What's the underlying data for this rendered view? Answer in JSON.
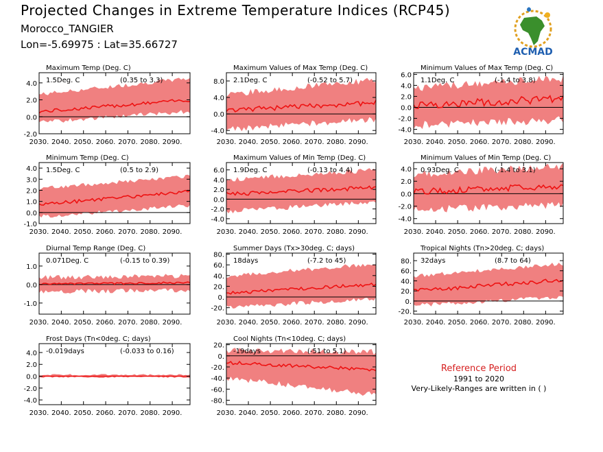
{
  "header": {
    "title": "Projected Changes in Extreme Temperature Indices (RCP45)",
    "location": "Morocco_TANGIER",
    "coords": "Lon=-5.69975 : Lat=35.66727"
  },
  "logo": {
    "text": "ACMAD",
    "icon": "africa-map-logo"
  },
  "reference": {
    "title": "Reference Period",
    "years": "1991 to 2020",
    "note": "Very-Likely-Ranges are written in ( )"
  },
  "colors": {
    "band": "#f08080",
    "line": "#ee1111",
    "zero": "#000000",
    "ref_title": "#d62020"
  },
  "chart_data": [
    {
      "type": "area",
      "title": "Maximum Temp (Deg. C)",
      "median_text": "1.5Deg. C",
      "range_text": "(0.35 to 3.3)",
      "x": [
        2030,
        2098
      ],
      "xticks": [
        "2030.",
        "2040.",
        "2050.",
        "2060.",
        "2070.",
        "2080.",
        "2090."
      ],
      "ylim": [
        -2.0,
        5.2
      ],
      "yticks": [
        -2.0,
        0.0,
        2.0,
        4.0
      ],
      "yticklabels": [
        "-2.0",
        "0.0",
        "2.0",
        "4.0"
      ],
      "median": {
        "start": 0.6,
        "end": 2.0,
        "noise": 0.2
      },
      "band": {
        "low_start": -0.4,
        "low_end": 0.9,
        "high_start": 2.4,
        "high_end": 4.3,
        "noise": 0.5
      }
    },
    {
      "type": "area",
      "title": "Maximum Values of Max Temp (Deg. C)",
      "median_text": "2.1Deg. C",
      "range_text": "(-0.52 to 5.7)",
      "x": [
        2030,
        2098
      ],
      "xticks": [
        "2030.",
        "2040.",
        "2050.",
        "2060.",
        "2070.",
        "2080.",
        "2090."
      ],
      "ylim": [
        -4.8,
        10.0
      ],
      "yticks": [
        -4.0,
        0.0,
        4.0,
        8.0
      ],
      "yticklabels": [
        "-4.0",
        "0.0",
        "4.0",
        "8.0"
      ],
      "median": {
        "start": 0.8,
        "end": 2.8,
        "noise": 0.6
      },
      "band": {
        "low_start": -3.0,
        "low_end": -0.5,
        "high_start": 4.0,
        "high_end": 7.5,
        "noise": 1.5
      }
    },
    {
      "type": "area",
      "title": "Minimum Values of Max Temp (Deg. C)",
      "median_text": "1.1Deg. C",
      "range_text": "(-1.4 to 3.8)",
      "x": [
        2030,
        2098
      ],
      "xticks": [
        "2030.",
        "2040.",
        "2050.",
        "2060.",
        "2070.",
        "2080.",
        "2090."
      ],
      "ylim": [
        -4.8,
        6.3
      ],
      "yticks": [
        -4.0,
        -2.0,
        0.0,
        2.0,
        4.0,
        6.0
      ],
      "yticklabels": [
        "-4.0",
        "-2.0",
        "0.0",
        "2.0",
        "4.0",
        "6.0"
      ],
      "median": {
        "start": 0.4,
        "end": 1.6,
        "noise": 0.7
      },
      "band": {
        "low_start": -2.5,
        "low_end": -1.5,
        "high_start": 2.8,
        "high_end": 4.5,
        "noise": 1.5
      }
    },
    {
      "type": "area",
      "title": "Minimum Temp (Deg. C)",
      "median_text": "1.5Deg. C",
      "range_text": "(0.5 to 2.9)",
      "x": [
        2030,
        2098
      ],
      "xticks": [
        "2030.",
        "2040.",
        "2050.",
        "2060.",
        "2070.",
        "2080.",
        "2090."
      ],
      "ylim": [
        -1.0,
        4.5
      ],
      "yticks": [
        -1.0,
        0.0,
        1.0,
        2.0,
        3.0,
        4.0
      ],
      "yticklabels": [
        "-1.0",
        "0.0",
        "1.0",
        "2.0",
        "3.0",
        "4.0"
      ],
      "median": {
        "start": 0.7,
        "end": 1.9,
        "noise": 0.15
      },
      "band": {
        "low_start": -0.2,
        "low_end": 0.8,
        "high_start": 2.0,
        "high_end": 3.1,
        "noise": 0.35
      }
    },
    {
      "type": "area",
      "title": "Maximum Values of Min Temp (Deg. C)",
      "median_text": "1.9Deg. C",
      "range_text": "(-0.13 to 4.4)",
      "x": [
        2030,
        2098
      ],
      "xticks": [
        "2030.",
        "2040.",
        "2050.",
        "2060.",
        "2070.",
        "2080.",
        "2090."
      ],
      "ylim": [
        -5.0,
        7.5
      ],
      "yticks": [
        -4.0,
        -2.0,
        0.0,
        2.0,
        4.0,
        6.0
      ],
      "yticklabels": [
        "-4.0",
        "-2.0",
        "0.0",
        "2.0",
        "4.0",
        "6.0"
      ],
      "median": {
        "start": 1.0,
        "end": 2.4,
        "noise": 0.4
      },
      "band": {
        "low_start": -2.0,
        "low_end": 0.0,
        "high_start": 3.5,
        "high_end": 5.5,
        "noise": 1.0
      }
    },
    {
      "type": "area",
      "title": "Minimum Values of Min Temp (Deg. C)",
      "median_text": "0.93Deg. C",
      "range_text": "(-1.4 to 3.1)",
      "x": [
        2030,
        2098
      ],
      "xticks": [
        "2030.",
        "2040.",
        "2050.",
        "2060.",
        "2070.",
        "2080.",
        "2090."
      ],
      "ylim": [
        -4.8,
        5.0
      ],
      "yticks": [
        -4.0,
        -2.0,
        0.0,
        2.0,
        4.0
      ],
      "yticklabels": [
        "-4.0",
        "-2.0",
        "0.0",
        "2.0",
        "4.0"
      ],
      "median": {
        "start": 0.3,
        "end": 1.2,
        "noise": 0.5
      },
      "band": {
        "low_start": -2.0,
        "low_end": -1.2,
        "high_start": 2.5,
        "high_end": 3.8,
        "noise": 1.2
      }
    },
    {
      "type": "area",
      "title": "Diurnal Temp Range (Deg. C)",
      "median_text": "0.071Deg. C",
      "range_text": "(-0.15 to 0.39)",
      "x": [
        2030,
        2098
      ],
      "xticks": [
        "2030.",
        "2040.",
        "2050.",
        "2060.",
        "2070.",
        "2080.",
        "2090."
      ],
      "ylim": [
        -1.6,
        1.7
      ],
      "yticks": [
        -1.0,
        0.0,
        1.0
      ],
      "yticklabels": [
        "-1.0",
        "0.0",
        "1.0"
      ],
      "median": {
        "start": 0.02,
        "end": 0.1,
        "noise": 0.05
      },
      "band": {
        "low_start": -0.25,
        "low_end": -0.2,
        "high_start": 0.25,
        "high_end": 0.35,
        "noise": 0.25
      }
    },
    {
      "type": "area",
      "title": "Summer Days (Tx>30deg. C; days)",
      "median_text": "18days",
      "range_text": "(-7.2 to 45)",
      "x": [
        2030,
        2098
      ],
      "xticks": [
        "2030.",
        "2040.",
        "2050.",
        "2060.",
        "2070.",
        "2080.",
        "2090."
      ],
      "ylim": [
        -32,
        82
      ],
      "yticks": [
        -20,
        0,
        20,
        40,
        60,
        80
      ],
      "yticklabels": [
        "-20.",
        "0.",
        "20.",
        "40.",
        "60.",
        "80."
      ],
      "median": {
        "start": 7,
        "end": 24,
        "noise": 3
      },
      "band": {
        "low_start": -15,
        "low_end": 0,
        "high_start": 35,
        "high_end": 58,
        "noise": 8
      }
    },
    {
      "type": "area",
      "title": "Tropical Nights (Tn>20deg. C; days)",
      "median_text": "32days",
      "range_text": "(8.7 to 64)",
      "x": [
        2030,
        2098
      ],
      "xticks": [
        "2030.",
        "2040.",
        "2050.",
        "2060.",
        "2070.",
        "2080.",
        "2090."
      ],
      "ylim": [
        -26,
        95
      ],
      "yticks": [
        -20,
        0,
        20,
        40,
        60,
        80
      ],
      "yticklabels": [
        "-20.",
        "0.",
        "20.",
        "40.",
        "60.",
        "80."
      ],
      "median": {
        "start": 20,
        "end": 42,
        "noise": 4
      },
      "band": {
        "low_start": -5,
        "low_end": 12,
        "high_start": 45,
        "high_end": 70,
        "noise": 8
      }
    },
    {
      "type": "area",
      "title": "Frost Days (Tn<0deg. C; days)",
      "median_text": "-0.019days",
      "range_text": "(-0.033 to 0.16)",
      "x": [
        2030,
        2098
      ],
      "xticks": [
        "2030.",
        "2040.",
        "2050.",
        "2060.",
        "2070.",
        "2080.",
        "2090."
      ],
      "ylim": [
        -4.8,
        5.5
      ],
      "yticks": [
        -4.0,
        -2.0,
        0.0,
        2.0,
        4.0
      ],
      "yticklabels": [
        "-4.0",
        "-2.0",
        "0.0",
        "2.0",
        "4.0"
      ],
      "median": {
        "start": 0.0,
        "end": 0.0,
        "noise": 0.0
      },
      "band": {
        "low_start": 0.0,
        "low_end": 0.0,
        "high_start": 0.1,
        "high_end": 0.1,
        "noise": 0.3
      }
    },
    {
      "type": "area",
      "title": "Cool Nights (Tn<10deg. C; days)",
      "median_text": "-19days",
      "range_text": "(-51 to 5.1)",
      "x": [
        2030,
        2098
      ],
      "xticks": [
        "2030.",
        "2040.",
        "2050.",
        "2060.",
        "2070.",
        "2080.",
        "2090."
      ],
      "ylim": [
        -88,
        22
      ],
      "yticks": [
        -80,
        -60,
        -40,
        -20,
        0,
        20
      ],
      "yticklabels": [
        "-80.",
        "-60.",
        "-40.",
        "-20.",
        "0.",
        "20."
      ],
      "median": {
        "start": -12,
        "end": -25,
        "noise": 3
      },
      "band": {
        "low_start": -35,
        "low_end": -65,
        "high_start": 5,
        "high_end": 2,
        "noise": 10
      }
    }
  ]
}
